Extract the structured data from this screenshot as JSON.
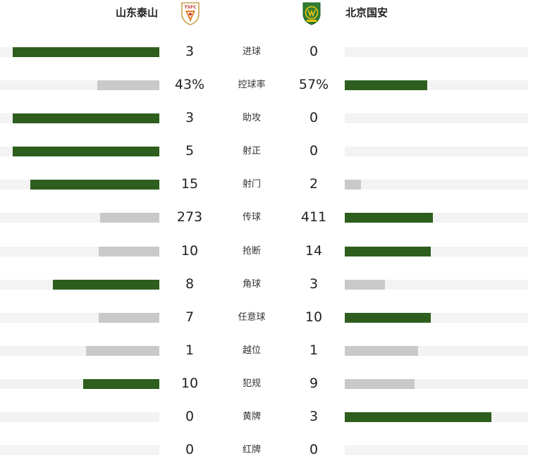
{
  "home": {
    "name": "山东泰山",
    "logo_icon": "shandong-taishan-crest-icon",
    "logo_text": "TSFC"
  },
  "away": {
    "name": "北京国安",
    "logo_icon": "beijing-guoan-crest-icon"
  },
  "colors": {
    "win": "#2e5e1e",
    "lose": "#c9c9c9",
    "track": "#f3f3f3"
  },
  "stats": [
    {
      "label": "进球",
      "home": "3",
      "away": "0",
      "home_fill": 0.92,
      "away_fill": 0
    },
    {
      "label": "控球率",
      "home": "43%",
      "away": "57%",
      "home_fill": 0.39,
      "away_fill": 0.45
    },
    {
      "label": "助攻",
      "home": "3",
      "away": "0",
      "home_fill": 0.92,
      "away_fill": 0
    },
    {
      "label": "射正",
      "home": "5",
      "away": "0",
      "home_fill": 0.92,
      "away_fill": 0
    },
    {
      "label": "射门",
      "home": "15",
      "away": "2",
      "home_fill": 0.81,
      "away_fill": 0.09
    },
    {
      "label": "传球",
      "home": "273",
      "away": "411",
      "home_fill": 0.37,
      "away_fill": 0.48
    },
    {
      "label": "抢断",
      "home": "10",
      "away": "14",
      "home_fill": 0.38,
      "away_fill": 0.47
    },
    {
      "label": "角球",
      "home": "8",
      "away": "3",
      "home_fill": 0.67,
      "away_fill": 0.22
    },
    {
      "label": "任意球",
      "home": "7",
      "away": "10",
      "home_fill": 0.38,
      "away_fill": 0.47
    },
    {
      "label": "越位",
      "home": "1",
      "away": "1",
      "home_fill": 0.46,
      "away_fill": 0.4
    },
    {
      "label": "犯规",
      "home": "10",
      "away": "9",
      "home_fill": 0.48,
      "away_fill": 0.38
    },
    {
      "label": "黄牌",
      "home": "0",
      "away": "3",
      "home_fill": 0,
      "away_fill": 0.8
    },
    {
      "label": "红牌",
      "home": "0",
      "away": "0",
      "home_fill": 0,
      "away_fill": 0
    }
  ]
}
